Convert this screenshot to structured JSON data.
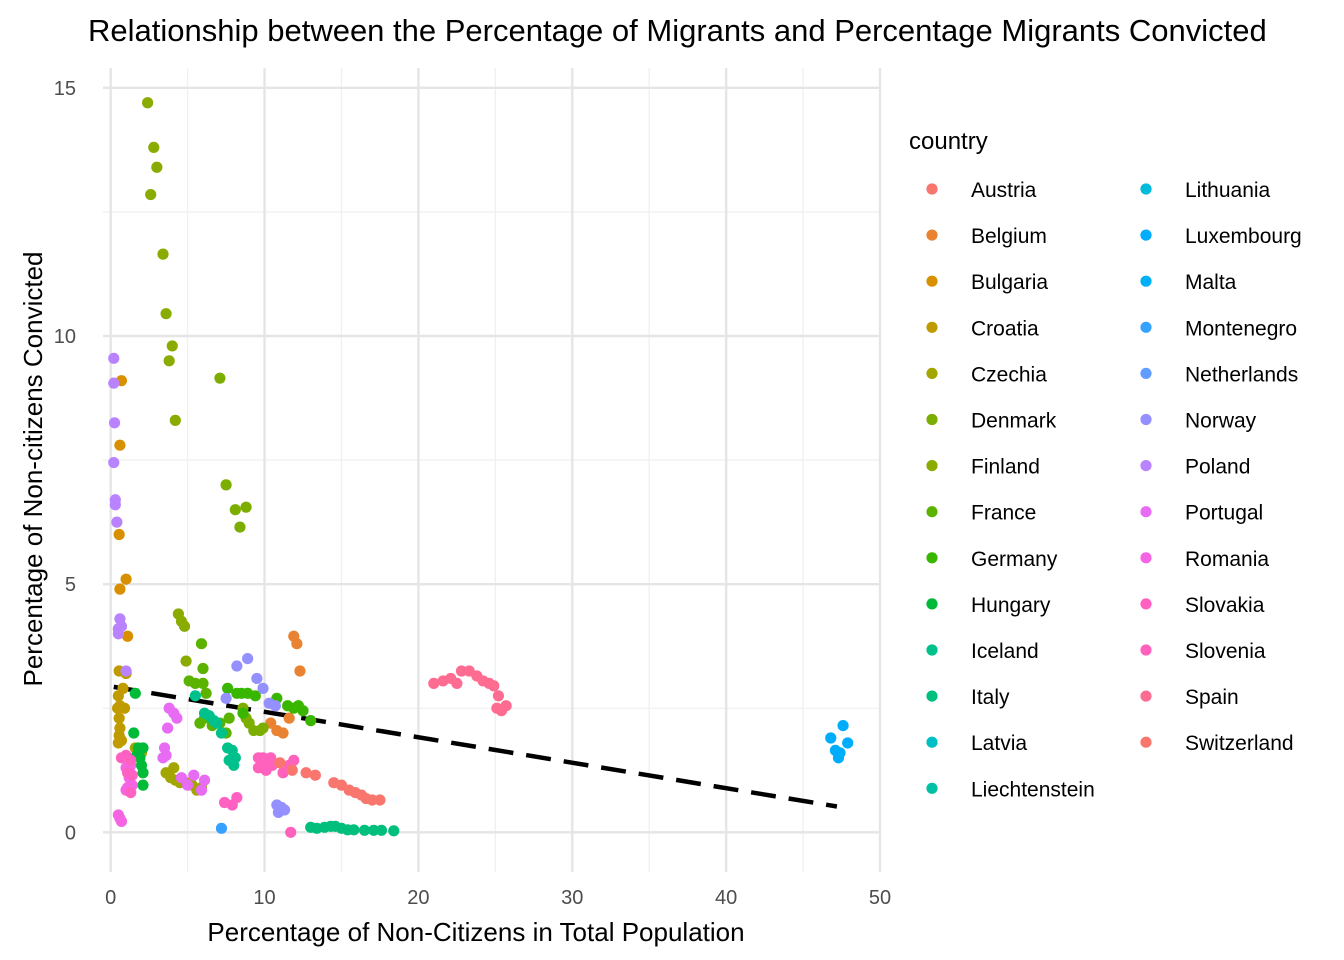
{
  "chart_data": {
    "type": "scatter",
    "title": "Relationship between the Percentage of Migrants and Percentage Migrants Convicted",
    "xlabel": "Percentage of Non-Citizens in Total Population",
    "ylabel": "Percentage of Non-citizens Convicted",
    "xlim": [
      -0.5,
      50
    ],
    "ylim": [
      -0.8,
      15.4
    ],
    "x_ticks": [
      0,
      10,
      20,
      30,
      40,
      50
    ],
    "y_ticks": [
      0,
      5,
      10,
      15
    ],
    "grid": true,
    "legend_title": "country",
    "legend_position": "right",
    "trend_line": {
      "style": "dashed",
      "color": "#000000",
      "x": [
        0.2,
        47.2
      ],
      "y": [
        2.93,
        0.52
      ]
    },
    "series": [
      {
        "name": "Austria",
        "color": "#F8766D",
        "points": []
      },
      {
        "name": "Belgium",
        "color": "#EA8331",
        "points": [
          [
            11.9,
            3.95
          ],
          [
            12.1,
            3.8
          ],
          [
            12.3,
            3.25
          ],
          [
            10.4,
            2.2
          ],
          [
            10.8,
            2.05
          ],
          [
            11.2,
            2.0
          ],
          [
            11.6,
            2.3
          ]
        ]
      },
      {
        "name": "Bulgaria",
        "color": "#D89000",
        "points": [
          [
            0.7,
            9.1
          ],
          [
            0.6,
            7.8
          ],
          [
            0.55,
            6.0
          ],
          [
            1.0,
            5.1
          ],
          [
            0.6,
            4.9
          ],
          [
            1.1,
            3.95
          ],
          [
            0.5,
            4.1
          ]
        ]
      },
      {
        "name": "Croatia",
        "color": "#C09B00",
        "points": [
          [
            0.55,
            3.25
          ],
          [
            0.8,
            2.9
          ],
          [
            0.5,
            2.75
          ],
          [
            0.6,
            2.55
          ],
          [
            0.45,
            2.5
          ],
          [
            0.55,
            2.3
          ],
          [
            0.6,
            2.1
          ],
          [
            0.55,
            1.95
          ],
          [
            0.5,
            1.8
          ],
          [
            0.7,
            1.85
          ],
          [
            1.0,
            3.2
          ],
          [
            0.9,
            2.5
          ]
        ]
      },
      {
        "name": "Czechia",
        "color": "#A3A500",
        "points": [
          [
            3.9,
            1.1
          ],
          [
            4.2,
            1.05
          ],
          [
            4.5,
            1.0
          ],
          [
            4.9,
            1.0
          ],
          [
            5.3,
            0.95
          ],
          [
            5.6,
            0.85
          ],
          [
            5.9,
            0.9
          ],
          [
            3.6,
            1.2
          ],
          [
            4.1,
            1.3
          ],
          [
            1.6,
            1.7
          ],
          [
            2.0,
            1.6
          ]
        ]
      },
      {
        "name": "Denmark",
        "color": "#7CAE00",
        "points": [
          [
            7.1,
            9.15
          ],
          [
            7.5,
            7.0
          ],
          [
            8.1,
            6.5
          ],
          [
            8.4,
            6.15
          ],
          [
            8.8,
            6.55
          ],
          [
            9.0,
            2.2
          ],
          [
            9.3,
            2.05
          ],
          [
            9.7,
            2.05
          ],
          [
            8.6,
            2.5
          ],
          [
            8.8,
            2.3
          ],
          [
            9.9,
            2.1
          ]
        ]
      },
      {
        "name": "Finland",
        "color": "#8AAB00",
        "points": [
          [
            2.6,
            12.85
          ],
          [
            3.0,
            13.4
          ],
          [
            2.8,
            13.8
          ],
          [
            2.4,
            14.7
          ],
          [
            3.4,
            11.65
          ],
          [
            3.6,
            10.45
          ],
          [
            4.0,
            9.8
          ],
          [
            3.8,
            9.5
          ],
          [
            4.2,
            8.3
          ],
          [
            4.4,
            4.4
          ],
          [
            4.6,
            4.25
          ],
          [
            4.8,
            4.15
          ],
          [
            4.9,
            3.45
          ]
        ]
      },
      {
        "name": "France",
        "color": "#5BB300",
        "points": [
          [
            5.9,
            3.8
          ],
          [
            6.0,
            3.3
          ],
          [
            5.1,
            3.05
          ],
          [
            5.5,
            3.0
          ],
          [
            6.0,
            3.0
          ],
          [
            6.2,
            2.8
          ],
          [
            5.8,
            2.2
          ],
          [
            6.1,
            2.3
          ],
          [
            6.6,
            2.15
          ],
          [
            7.1,
            2.2
          ],
          [
            7.5,
            2.0
          ],
          [
            7.7,
            2.3
          ]
        ]
      },
      {
        "name": "Germany",
        "color": "#39B600",
        "points": [
          [
            7.6,
            2.9
          ],
          [
            8.2,
            2.8
          ],
          [
            8.5,
            2.8
          ],
          [
            8.9,
            2.8
          ],
          [
            9.4,
            2.75
          ],
          [
            10.8,
            2.7
          ],
          [
            11.5,
            2.55
          ],
          [
            11.9,
            2.5
          ],
          [
            12.2,
            2.55
          ],
          [
            12.5,
            2.45
          ],
          [
            13.0,
            2.25
          ],
          [
            8.6,
            2.4
          ]
        ]
      },
      {
        "name": "Hungary",
        "color": "#00BA38",
        "points": [
          [
            1.6,
            2.8
          ],
          [
            1.5,
            2.0
          ],
          [
            1.8,
            1.7
          ],
          [
            2.1,
            1.7
          ],
          [
            1.7,
            1.55
          ],
          [
            2.0,
            1.35
          ],
          [
            2.1,
            1.2
          ],
          [
            2.1,
            0.95
          ],
          [
            1.9,
            1.5
          ]
        ]
      },
      {
        "name": "Iceland",
        "color": "#00C08B",
        "points": [
          [
            5.5,
            2.75
          ],
          [
            6.1,
            2.4
          ],
          [
            6.4,
            2.35
          ],
          [
            6.7,
            2.25
          ],
          [
            6.9,
            2.2
          ],
          [
            7.2,
            2.0
          ],
          [
            7.6,
            1.7
          ],
          [
            7.9,
            1.65
          ],
          [
            8.1,
            1.5
          ],
          [
            8.0,
            1.35
          ],
          [
            7.7,
            1.45
          ]
        ]
      },
      {
        "name": "Italy",
        "color": "#00BF7D",
        "points": [
          [
            13.0,
            0.1
          ],
          [
            13.4,
            0.08
          ],
          [
            13.9,
            0.1
          ],
          [
            14.3,
            0.12
          ],
          [
            14.6,
            0.12
          ],
          [
            15.0,
            0.08
          ],
          [
            15.4,
            0.05
          ],
          [
            15.8,
            0.05
          ],
          [
            16.5,
            0.04
          ],
          [
            17.1,
            0.04
          ],
          [
            17.6,
            0.04
          ],
          [
            18.4,
            0.03
          ]
        ]
      },
      {
        "name": "Latvia",
        "color": "#00BFC4",
        "points": []
      },
      {
        "name": "Liechtenstein",
        "color": "#00C1A3",
        "points": []
      },
      {
        "name": "Lithuania",
        "color": "#00BBDA",
        "points": []
      },
      {
        "name": "Luxembourg",
        "color": "#00ACFC",
        "points": [
          [
            46.8,
            1.9
          ],
          [
            47.1,
            1.65
          ],
          [
            47.3,
            1.5
          ],
          [
            47.6,
            2.15
          ],
          [
            47.9,
            1.8
          ],
          [
            47.4,
            1.6
          ]
        ]
      },
      {
        "name": "Malta",
        "color": "#00B0F6",
        "points": []
      },
      {
        "name": "Montenegro",
        "color": "#35A2FF",
        "points": [
          [
            7.2,
            0.08
          ]
        ]
      },
      {
        "name": "Netherlands",
        "color": "#619CFF",
        "points": []
      },
      {
        "name": "Norway",
        "color": "#9590FF",
        "points": [
          [
            8.2,
            3.35
          ],
          [
            8.9,
            3.5
          ],
          [
            9.5,
            3.1
          ],
          [
            9.9,
            2.9
          ],
          [
            10.3,
            2.6
          ],
          [
            10.7,
            2.55
          ],
          [
            7.5,
            2.7
          ],
          [
            10.8,
            0.55
          ],
          [
            11.1,
            0.5
          ],
          [
            11.3,
            0.45
          ],
          [
            10.9,
            0.4
          ]
        ]
      },
      {
        "name": "Poland",
        "color": "#B983FF",
        "points": [
          [
            0.2,
            9.55
          ],
          [
            0.2,
            9.05
          ],
          [
            0.25,
            8.25
          ],
          [
            0.2,
            7.45
          ],
          [
            0.3,
            6.7
          ],
          [
            0.3,
            6.6
          ],
          [
            0.4,
            6.25
          ],
          [
            0.5,
            4.1
          ],
          [
            0.6,
            4.3
          ],
          [
            0.7,
            4.15
          ],
          [
            0.5,
            4.0
          ],
          [
            1.0,
            3.25
          ]
        ]
      },
      {
        "name": "Portugal",
        "color": "#E76BF3",
        "points": [
          [
            3.5,
            1.7
          ],
          [
            3.6,
            1.55
          ],
          [
            3.8,
            2.5
          ],
          [
            4.1,
            2.4
          ],
          [
            4.3,
            2.3
          ],
          [
            3.7,
            2.1
          ],
          [
            3.4,
            1.5
          ],
          [
            4.6,
            1.1
          ],
          [
            5.0,
            0.95
          ],
          [
            5.4,
            1.15
          ],
          [
            6.1,
            1.05
          ],
          [
            5.9,
            0.85
          ]
        ]
      },
      {
        "name": "Romania",
        "color": "#F564E3",
        "points": [
          [
            0.5,
            0.35
          ],
          [
            0.6,
            0.28
          ],
          [
            0.7,
            0.22
          ],
          [
            1.0,
            1.3
          ],
          [
            1.2,
            1.25
          ],
          [
            1.3,
            1.35
          ],
          [
            1.1,
            0.9
          ],
          [
            1.0,
            0.85
          ],
          [
            1.4,
            0.95
          ],
          [
            1.2,
            1.1
          ]
        ]
      },
      {
        "name": "Slovakia",
        "color": "#FF61C3",
        "points": [
          [
            0.7,
            1.5
          ],
          [
            1.0,
            1.55
          ],
          [
            1.3,
            1.45
          ],
          [
            1.1,
            1.2
          ],
          [
            1.4,
            1.15
          ],
          [
            1.3,
            0.8
          ],
          [
            7.4,
            0.6
          ],
          [
            7.9,
            0.55
          ],
          [
            8.2,
            0.7
          ]
        ]
      },
      {
        "name": "Slovenia",
        "color": "#FF62BC",
        "points": [
          [
            9.6,
            1.5
          ],
          [
            9.9,
            1.5
          ],
          [
            10.2,
            1.4
          ],
          [
            10.4,
            1.5
          ],
          [
            9.6,
            1.3
          ],
          [
            10.1,
            1.25
          ],
          [
            10.5,
            1.35
          ],
          [
            11.2,
            1.2
          ],
          [
            11.6,
            1.35
          ],
          [
            11.9,
            1.45
          ],
          [
            11.7,
            0.0
          ]
        ]
      },
      {
        "name": "Spain",
        "color": "#FF6C91",
        "points": [
          [
            21.0,
            3.0
          ],
          [
            21.6,
            3.05
          ],
          [
            22.1,
            3.1
          ],
          [
            22.5,
            3.0
          ],
          [
            22.8,
            3.25
          ],
          [
            23.3,
            3.25
          ],
          [
            23.8,
            3.15
          ],
          [
            24.2,
            3.05
          ],
          [
            24.6,
            3.0
          ],
          [
            24.9,
            2.95
          ],
          [
            25.2,
            2.75
          ],
          [
            25.1,
            2.5
          ],
          [
            25.4,
            2.45
          ],
          [
            25.7,
            2.55
          ]
        ]
      },
      {
        "name": "Switzerland",
        "color": "#F8766D",
        "points": [
          [
            12.7,
            1.2
          ],
          [
            13.3,
            1.15
          ],
          [
            14.5,
            1.0
          ],
          [
            15.0,
            0.95
          ],
          [
            15.5,
            0.85
          ],
          [
            15.9,
            0.8
          ],
          [
            16.3,
            0.75
          ],
          [
            16.6,
            0.68
          ],
          [
            17.0,
            0.65
          ],
          [
            17.5,
            0.65
          ],
          [
            11.0,
            1.4
          ],
          [
            11.8,
            1.25
          ]
        ]
      }
    ]
  }
}
